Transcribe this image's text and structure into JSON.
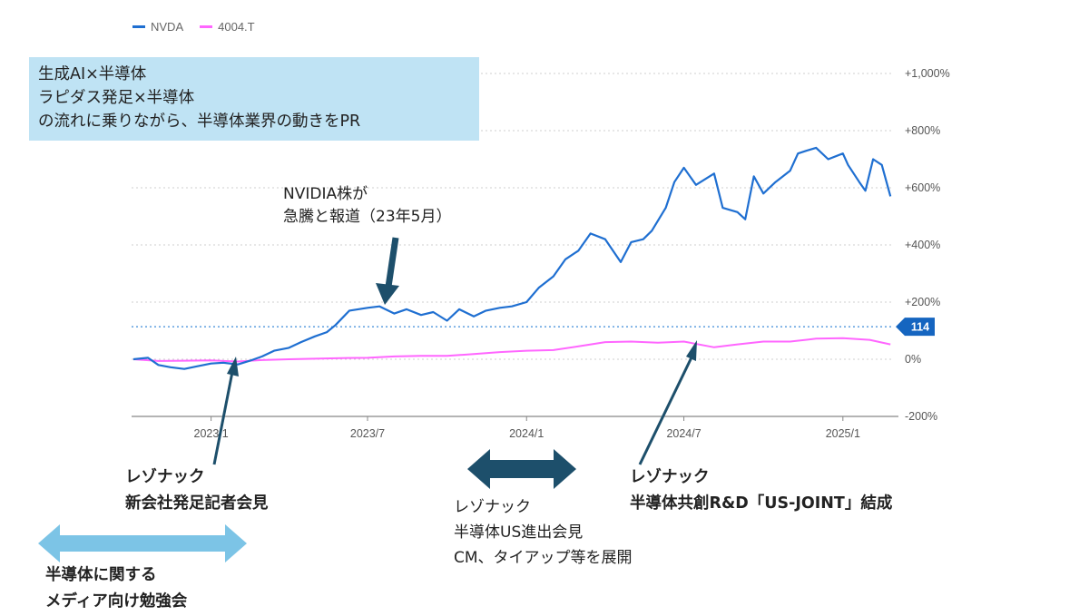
{
  "chart_data": {
    "type": "line",
    "legend": [
      {
        "name": "NVDA",
        "color": "#1f6fd1"
      },
      {
        "name": "4004.T",
        "color": "#ff66ff"
      }
    ],
    "y_unit": "%",
    "ylim": [
      -200,
      1000
    ],
    "y_ticks": [
      "+1,000%",
      "+800%",
      "+600%",
      "+400%",
      "+200%",
      "0%",
      "-200%"
    ],
    "x_ticks": [
      "2023/1",
      "2023/7",
      "2024/1",
      "2024/7",
      "2025/1"
    ],
    "xlim": [
      "2022-10-01",
      "2025-03-01"
    ],
    "reference_line": {
      "value": 114,
      "label": "114",
      "color": "#1565c0"
    },
    "series": [
      {
        "name": "NVDA",
        "color": "#1f6fd1",
        "x": [
          "2022-10-03",
          "2022-10-20",
          "2022-11-01",
          "2022-11-15",
          "2022-12-01",
          "2022-12-15",
          "2023-01-01",
          "2023-01-15",
          "2023-02-01",
          "2023-02-15",
          "2023-03-01",
          "2023-03-15",
          "2023-04-01",
          "2023-04-15",
          "2023-05-01",
          "2023-05-15",
          "2023-05-25",
          "2023-06-10",
          "2023-07-01",
          "2023-07-15",
          "2023-08-01",
          "2023-08-15",
          "2023-09-01",
          "2023-09-15",
          "2023-10-01",
          "2023-10-15",
          "2023-11-01",
          "2023-11-15",
          "2023-12-01",
          "2023-12-15",
          "2024-01-01",
          "2024-01-15",
          "2024-02-01",
          "2024-02-15",
          "2024-03-01",
          "2024-03-15",
          "2024-04-01",
          "2024-04-19",
          "2024-05-01",
          "2024-05-15",
          "2024-05-25",
          "2024-06-10",
          "2024-06-20",
          "2024-07-01",
          "2024-07-15",
          "2024-08-05",
          "2024-08-15",
          "2024-09-01",
          "2024-09-10",
          "2024-09-20",
          "2024-10-01",
          "2024-10-15",
          "2024-11-01",
          "2024-11-10",
          "2024-11-20",
          "2024-12-01",
          "2024-12-15",
          "2025-01-01",
          "2025-01-07",
          "2025-01-20",
          "2025-01-27",
          "2025-02-05",
          "2025-02-15",
          "2025-02-25"
        ],
        "values": [
          0,
          5,
          -20,
          -28,
          -34,
          -25,
          -15,
          -12,
          -18,
          -5,
          10,
          30,
          40,
          60,
          80,
          95,
          120,
          170,
          180,
          185,
          160,
          175,
          155,
          165,
          135,
          175,
          150,
          170,
          180,
          185,
          200,
          250,
          290,
          350,
          380,
          440,
          420,
          340,
          410,
          420,
          450,
          530,
          620,
          670,
          610,
          650,
          530,
          515,
          490,
          640,
          580,
          620,
          660,
          720,
          730,
          740,
          700,
          720,
          680,
          620,
          590,
          700,
          680,
          570
        ]
      },
      {
        "name": "4004.T",
        "color": "#ff66ff",
        "x": [
          "2022-10-03",
          "2022-11-01",
          "2022-12-01",
          "2023-01-01",
          "2023-02-01",
          "2023-03-01",
          "2023-04-01",
          "2023-05-01",
          "2023-06-01",
          "2023-07-01",
          "2023-08-01",
          "2023-09-01",
          "2023-10-01",
          "2023-11-01",
          "2023-12-01",
          "2024-01-01",
          "2024-02-01",
          "2024-03-01",
          "2024-04-01",
          "2024-05-01",
          "2024-06-01",
          "2024-07-01",
          "2024-08-05",
          "2024-09-01",
          "2024-10-01",
          "2024-11-01",
          "2024-12-01",
          "2025-01-01",
          "2025-02-01",
          "2025-02-25"
        ],
        "values": [
          0,
          -6,
          -5,
          -4,
          -8,
          -3,
          0,
          2,
          4,
          5,
          10,
          12,
          12,
          18,
          25,
          30,
          32,
          45,
          60,
          62,
          58,
          62,
          42,
          52,
          62,
          62,
          72,
          74,
          68,
          52
        ]
      }
    ]
  },
  "callout": {
    "lines": [
      "生成AI×半導体",
      "ラピダス発足×半導体",
      "の流れに乗りながら、半導体業界の動きをPR"
    ]
  },
  "annotations": {
    "nvidia_news": {
      "line1": "NVIDIA株が",
      "line2": "急騰と報道（23年5月）"
    },
    "new_company": {
      "line1": "レゾナック",
      "line2": "新会社発足記者会見"
    },
    "us_joint": {
      "line1": "レゾナック",
      "line2": "半導体共創R&D「US-JOINT」結成"
    },
    "us_expansion": {
      "line1": "レゾナック",
      "line2": "半導体US進出会見",
      "line3": "CM、タイアップ等を展開"
    },
    "media_study": {
      "line1": "半導体に関する",
      "line2": "メディア向け勉強会"
    }
  },
  "colors": {
    "callout_bg": "#bfe3f4",
    "arrow_dark": "#1d4f6b",
    "arrow_light": "#7cc4e6",
    "grid": "#cfcfcf",
    "badge": "#1565c0"
  }
}
